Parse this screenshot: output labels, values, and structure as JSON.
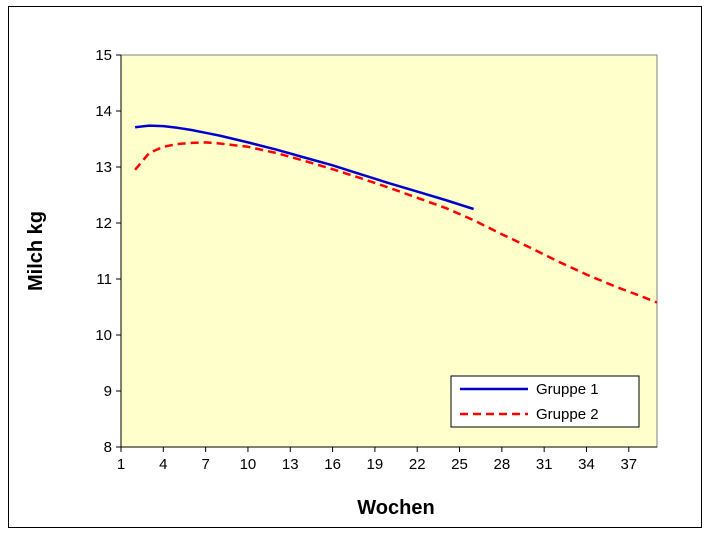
{
  "chart_data": {
    "type": "line",
    "title": "",
    "xlabel": "Wochen",
    "ylabel": "Milch kg",
    "xlim": [
      1,
      39
    ],
    "ylim": [
      8,
      15
    ],
    "x_ticks": [
      1,
      4,
      7,
      10,
      13,
      16,
      19,
      22,
      25,
      28,
      31,
      34,
      37
    ],
    "y_ticks": [
      8,
      9,
      10,
      11,
      12,
      13,
      14,
      15
    ],
    "grid": false,
    "plot_background": "#FFFFCC",
    "legend_position": "bottom-right",
    "series": [
      {
        "name": "Gruppe 1",
        "color": "#0000CC",
        "style": "solid",
        "x": [
          2,
          3,
          4,
          5,
          6,
          7,
          8,
          10,
          12,
          14,
          16,
          18,
          20,
          22,
          24,
          26
        ],
        "values": [
          13.71,
          13.74,
          13.73,
          13.7,
          13.66,
          13.61,
          13.56,
          13.44,
          13.31,
          13.17,
          13.03,
          12.87,
          12.71,
          12.56,
          12.41,
          12.25
        ]
      },
      {
        "name": "Gruppe 2",
        "color": "#FF0000",
        "style": "dashed",
        "x": [
          2,
          3,
          4,
          5,
          6,
          7,
          8,
          10,
          12,
          14,
          16,
          18,
          20,
          22,
          24,
          26,
          28,
          30,
          32,
          34,
          36,
          38,
          39
        ],
        "values": [
          12.95,
          13.25,
          13.36,
          13.41,
          13.43,
          13.44,
          13.42,
          13.36,
          13.25,
          13.11,
          12.96,
          12.8,
          12.63,
          12.45,
          12.27,
          12.05,
          11.8,
          11.56,
          11.31,
          11.08,
          10.87,
          10.68,
          10.58
        ]
      }
    ]
  }
}
